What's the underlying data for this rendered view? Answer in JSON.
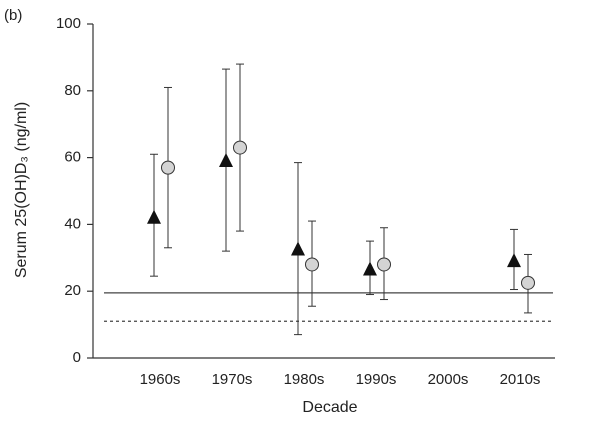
{
  "chart_data": {
    "type": "errorbar",
    "panel_label": "(b)",
    "y_label": "Serum 25(OH)D₃ (ng/ml)",
    "x_label": "Decade",
    "categories": [
      "1960s",
      "1970s",
      "1980s",
      "1990s",
      "2000s",
      "2010s"
    ],
    "series": [
      {
        "marker": "triangle",
        "color": "#111111",
        "values": [
          42,
          59,
          32.5,
          26.5,
          null,
          29
        ],
        "lower": [
          24.5,
          32,
          7,
          19,
          null,
          20.5
        ],
        "upper": [
          61,
          86.5,
          58.5,
          35,
          null,
          38.5
        ]
      },
      {
        "marker": "circle",
        "color": "#d4d4d4",
        "values": [
          57,
          63,
          28,
          28,
          null,
          22.5
        ],
        "lower": [
          33,
          38,
          15.5,
          17.5,
          null,
          13.5
        ],
        "upper": [
          81,
          88,
          41,
          39,
          null,
          31
        ]
      }
    ],
    "reference_lines": [
      {
        "value": 19.5,
        "style": "solid"
      },
      {
        "value": 11,
        "style": "dotted"
      }
    ],
    "ylim": [
      0,
      100
    ],
    "yticks": [
      0,
      20,
      40,
      60,
      80,
      100
    ]
  }
}
